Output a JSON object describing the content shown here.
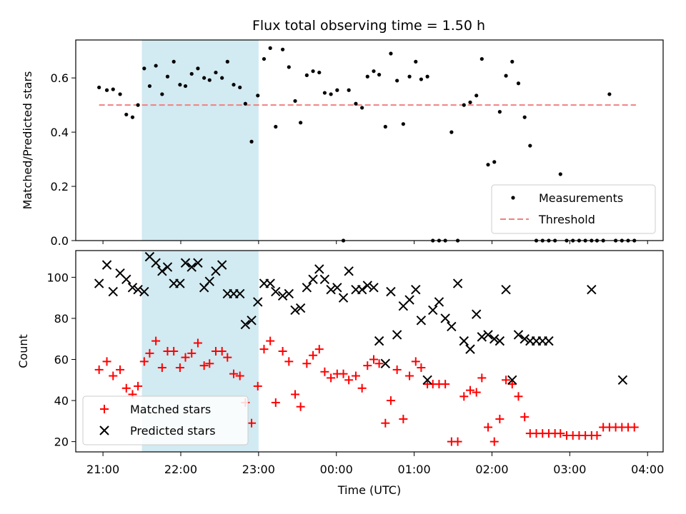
{
  "chart_data": [
    {
      "type": "scatter",
      "title": "Flux total observing time = 1.50 h",
      "xlabel": "",
      "ylabel": "Matched/Predicted stars",
      "x_unit": "hours after 00:00 UTC (reference, negative = previous day)",
      "ylim": [
        0,
        0.74
      ],
      "yticks": [
        "0.0",
        "0.2",
        "0.4",
        "0.6"
      ],
      "ytick_values": [
        0,
        0.2,
        0.4,
        0.6
      ],
      "highlight_band": {
        "x": [
          -2.5,
          -1.0
        ],
        "color": "#add8e6"
      },
      "legend": {
        "placement": "lower right",
        "items": [
          "Measurements",
          "Threshold"
        ]
      },
      "threshold": {
        "name": "Threshold",
        "y": 0.5,
        "x": [
          -3.05,
          3.85
        ],
        "color": "#f08080"
      },
      "series": [
        {
          "name": "Measurements",
          "color": "#000000",
          "x": [
            -3.05,
            -2.95,
            -2.87,
            -2.78,
            -2.7,
            -2.62,
            -2.55,
            -2.47,
            -2.4,
            -2.32,
            -2.24,
            -2.17,
            -2.09,
            -2.01,
            -1.94,
            -1.86,
            -1.78,
            -1.7,
            -1.63,
            -1.55,
            -1.47,
            -1.4,
            -1.32,
            -1.24,
            -1.17,
            -1.09,
            -1.01,
            -0.93,
            -0.85,
            -0.78,
            -0.69,
            -0.61,
            -0.53,
            -0.46,
            -0.38,
            -0.3,
            -0.22,
            -0.15,
            -0.07,
            0.01,
            0.09,
            0.16,
            0.25,
            0.33,
            0.4,
            0.48,
            0.55,
            0.63,
            0.7,
            0.78,
            0.86,
            0.94,
            1.02,
            1.09,
            1.17,
            1.24,
            1.32,
            1.4,
            1.48,
            1.56,
            1.64,
            1.72,
            1.8,
            1.87,
            1.95,
            2.03,
            2.1,
            2.18,
            2.26,
            2.34,
            2.42,
            2.49,
            2.57,
            2.65,
            2.73,
            2.81,
            2.88,
            2.96,
            3.04,
            3.12,
            3.2,
            3.28,
            3.35,
            3.43,
            3.51,
            3.59,
            3.67,
            3.75,
            3.83
          ],
          "y": [
            0.565,
            0.555,
            0.558,
            0.54,
            0.465,
            0.455,
            0.5,
            0.635,
            0.57,
            0.645,
            0.54,
            0.605,
            0.66,
            0.575,
            0.57,
            0.615,
            0.635,
            0.6,
            0.592,
            0.62,
            0.6,
            0.66,
            0.575,
            0.565,
            0.505,
            0.365,
            0.535,
            0.67,
            0.71,
            0.42,
            0.705,
            0.64,
            0.515,
            0.435,
            0.61,
            0.625,
            0.62,
            0.545,
            0.54,
            0.555,
            0.0,
            0.555,
            0.505,
            0.49,
            0.605,
            0.625,
            0.612,
            0.42,
            0.69,
            0.59,
            0.43,
            0.605,
            0.66,
            0.595,
            0.605,
            0.0,
            0.0,
            0.0,
            0.4,
            0.0,
            0.5,
            0.51,
            0.535,
            0.67,
            0.28,
            0.29,
            0.475,
            0.608,
            0.66,
            0.58,
            0.455,
            0.35,
            0.0,
            0.0,
            0.0,
            0.0,
            0.245,
            0.0,
            0.0,
            0.0,
            0.0,
            0.0,
            0.0,
            0.0,
            0.54,
            0.0,
            0.0,
            0.0,
            0.0
          ]
        }
      ]
    },
    {
      "type": "scatter",
      "title": "",
      "xlabel": "Time (UTC)",
      "ylabel": "Count",
      "x_unit": "hours after 00:00 UTC (reference, negative = previous day)",
      "ylim": [
        15,
        113
      ],
      "yticks": [
        "20",
        "40",
        "60",
        "80",
        "100"
      ],
      "ytick_values": [
        20,
        40,
        60,
        80,
        100
      ],
      "xticks": [
        "21:00",
        "22:00",
        "23:00",
        "00:00",
        "01:00",
        "02:00",
        "03:00",
        "04:00"
      ],
      "xtick_values": [
        -3,
        -2,
        -1,
        0,
        1,
        2,
        3,
        4
      ],
      "xlim": [
        -3.35,
        4.2
      ],
      "highlight_band": {
        "x": [
          -2.5,
          -1.0
        ],
        "color": "#add8e6"
      },
      "legend": {
        "placement": "lower left",
        "items": [
          "Matched stars",
          "Predicted stars"
        ]
      },
      "series": [
        {
          "name": "Matched stars",
          "color": "#ff0000",
          "marker": "+",
          "x": [
            -3.05,
            -2.95,
            -2.87,
            -2.78,
            -2.7,
            -2.62,
            -2.55,
            -2.47,
            -2.4,
            -2.32,
            -2.24,
            -2.17,
            -2.09,
            -2.01,
            -1.94,
            -1.86,
            -1.78,
            -1.7,
            -1.63,
            -1.55,
            -1.47,
            -1.4,
            -1.32,
            -1.24,
            -1.17,
            -1.09,
            -1.01,
            -0.93,
            -0.85,
            -0.78,
            -0.69,
            -0.61,
            -0.53,
            -0.46,
            -0.38,
            -0.3,
            -0.22,
            -0.15,
            -0.07,
            0.01,
            0.09,
            0.16,
            0.25,
            0.33,
            0.4,
            0.48,
            0.55,
            0.63,
            0.7,
            0.78,
            0.86,
            0.94,
            1.02,
            1.09,
            1.17,
            1.24,
            1.32,
            1.4,
            1.48,
            1.56,
            1.64,
            1.72,
            1.8,
            1.87,
            1.95,
            2.03,
            2.1,
            2.18,
            2.26,
            2.34,
            2.42,
            2.49,
            2.57,
            2.65,
            2.73,
            2.81,
            2.88,
            2.96,
            3.04,
            3.12,
            3.2,
            3.28,
            3.35,
            3.43,
            3.51,
            3.59,
            3.67,
            3.75,
            3.83
          ],
          "y": [
            55,
            59,
            52,
            55,
            46,
            43,
            47,
            59,
            63,
            69,
            56,
            64,
            64,
            56,
            61,
            63,
            68,
            57,
            58,
            64,
            64,
            61,
            53,
            52,
            39,
            29,
            47,
            65,
            69,
            39,
            64,
            59,
            43,
            37,
            58,
            62,
            65,
            54,
            51,
            53,
            53,
            50,
            52,
            46,
            57,
            60,
            58,
            29,
            40,
            55,
            31,
            52,
            59,
            56,
            48,
            48,
            48,
            48,
            20,
            20,
            42,
            45,
            44,
            51,
            27,
            20,
            31,
            50,
            48,
            42,
            32,
            24,
            24,
            24,
            24,
            24,
            24,
            23,
            23,
            23,
            23,
            23,
            23,
            27,
            27,
            27,
            27,
            27,
            27
          ]
        },
        {
          "name": "Predicted stars",
          "color": "#000000",
          "marker": "x",
          "x": [
            -3.05,
            -2.95,
            -2.87,
            -2.78,
            -2.7,
            -2.62,
            -2.55,
            -2.47,
            -2.4,
            -2.32,
            -2.24,
            -2.17,
            -2.09,
            -2.01,
            -1.94,
            -1.86,
            -1.78,
            -1.7,
            -1.63,
            -1.55,
            -1.47,
            -1.4,
            -1.32,
            -1.24,
            -1.17,
            -1.09,
            -1.01,
            -0.93,
            -0.85,
            -0.78,
            -0.69,
            -0.61,
            -0.53,
            -0.46,
            -0.38,
            -0.3,
            -0.22,
            -0.15,
            -0.07,
            0.01,
            0.09,
            0.16,
            0.25,
            0.33,
            0.4,
            0.48,
            0.55,
            0.63,
            0.7,
            0.78,
            0.86,
            0.94,
            1.02,
            1.09,
            1.17,
            1.24,
            1.32,
            1.4,
            1.48,
            1.56,
            1.64,
            1.72,
            1.8,
            1.87,
            1.95,
            2.03,
            2.1,
            2.18,
            2.26,
            2.34,
            2.42,
            2.49,
            2.57,
            2.65,
            2.73,
            3.28,
            3.68
          ],
          "y": [
            97,
            106,
            93,
            102,
            99,
            95,
            94,
            93,
            110,
            107,
            103,
            105,
            97,
            97,
            107,
            105,
            107,
            95,
            98,
            103,
            106,
            92,
            92,
            92,
            77,
            79,
            88,
            97,
            97,
            93,
            91,
            92,
            84,
            85,
            95,
            99,
            104,
            99,
            94,
            95,
            90,
            103,
            94,
            94,
            96,
            95,
            69,
            58,
            93,
            72,
            86,
            89,
            94,
            79,
            50,
            84,
            88,
            80,
            76,
            97,
            69,
            65,
            82,
            71,
            72,
            70,
            69,
            94,
            50,
            72,
            70,
            69,
            69,
            69,
            69,
            94,
            50
          ]
        }
      ]
    }
  ]
}
